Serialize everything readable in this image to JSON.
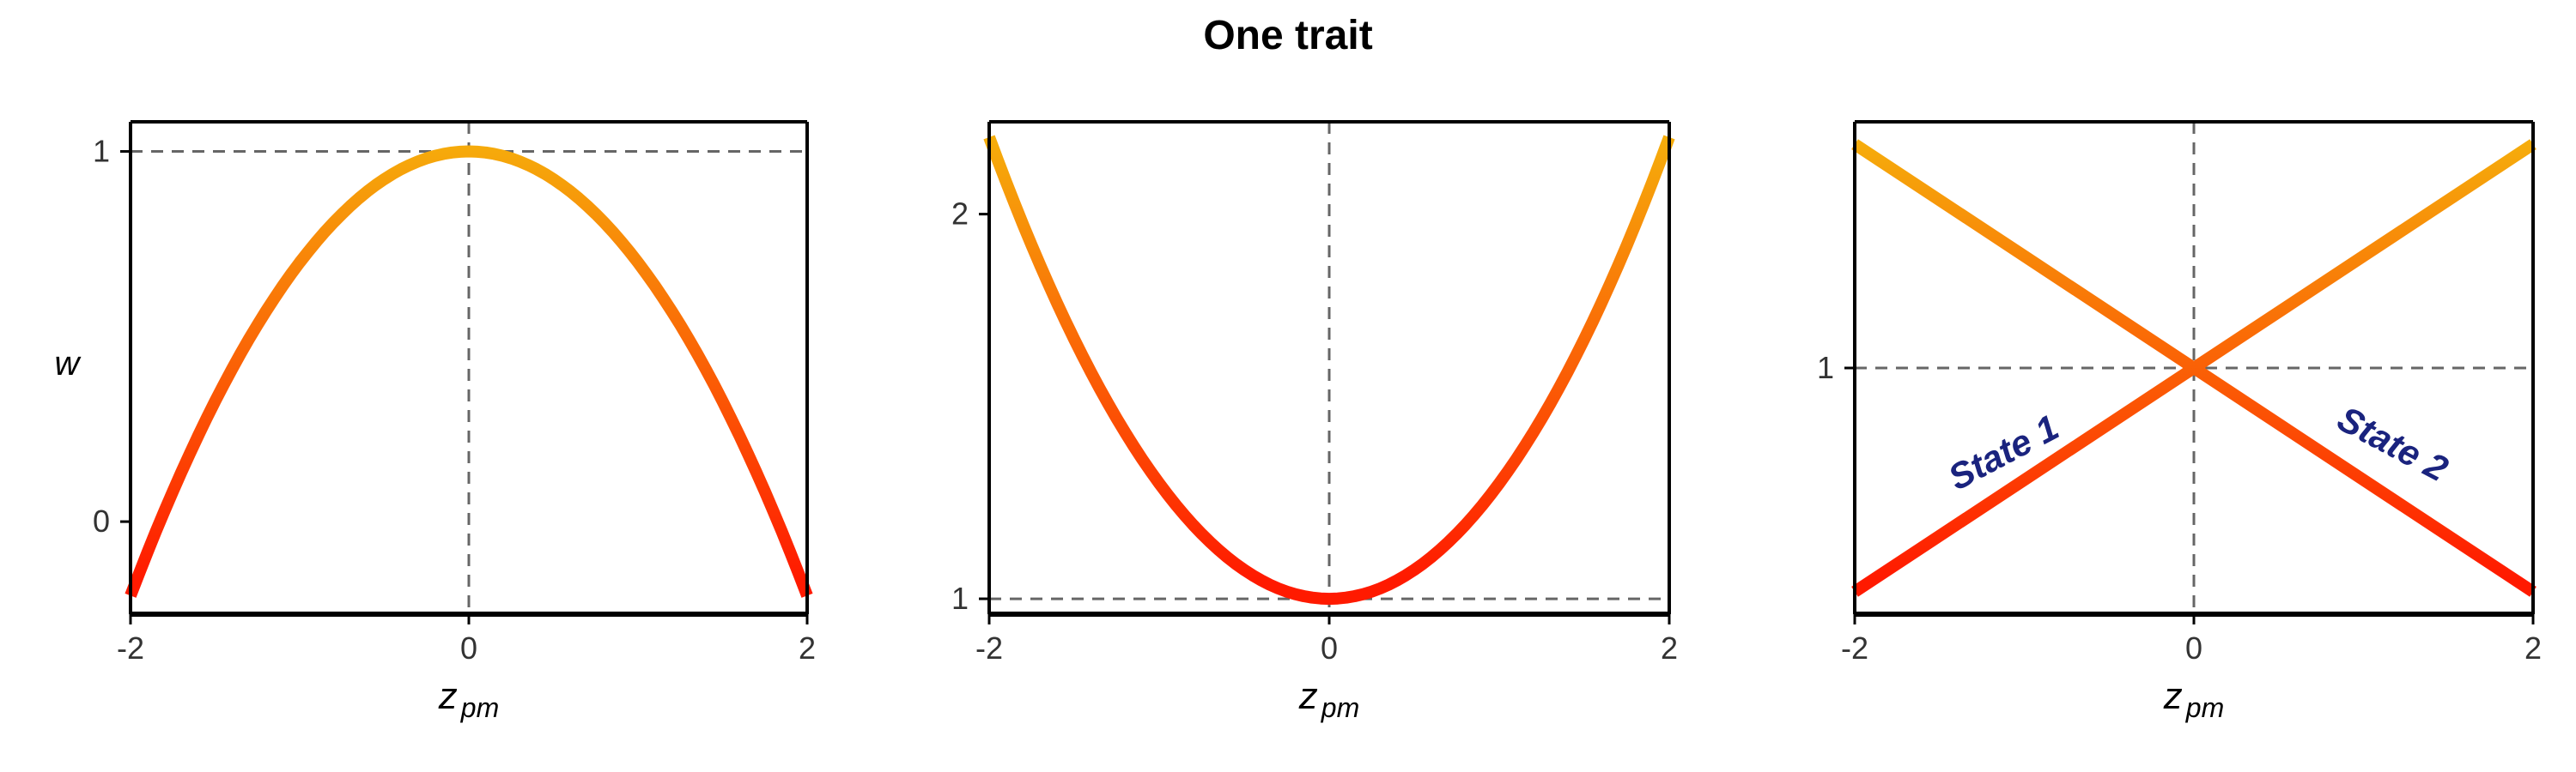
{
  "title": "One trait",
  "colors": {
    "curve_low": "#ff1a00",
    "curve_high": "#f4c20d",
    "annotation": "#1a237e",
    "guide": "#666666"
  },
  "chart_data": [
    {
      "type": "line",
      "function": "quadratic_concave",
      "x": [
        -2,
        -1.5,
        -1,
        -0.5,
        0,
        0.5,
        1,
        1.5,
        2
      ],
      "series": [
        {
          "values": [
            -0.2,
            0.325,
            0.7,
            0.925,
            1,
            0.925,
            0.7,
            0.325,
            -0.2
          ]
        }
      ],
      "xlabel": "z",
      "xlabel_sub": "pm",
      "ylabel": "w",
      "xticks": [
        "-2",
        "0",
        "2"
      ],
      "yticks": [
        "0",
        "1"
      ],
      "xlim": [
        -2,
        2
      ],
      "ylim": [
        -0.25,
        1.08
      ],
      "guides": {
        "vline": 0,
        "hline": 1
      },
      "grid": false
    },
    {
      "type": "line",
      "function": "quadratic_convex",
      "x": [
        -2,
        -1.5,
        -1,
        -0.5,
        0,
        0.5,
        1,
        1.5,
        2
      ],
      "series": [
        {
          "values": [
            2.2,
            1.675,
            1.3,
            1.075,
            1,
            1.075,
            1.3,
            1.675,
            2.2
          ]
        }
      ],
      "xlabel": "z",
      "xlabel_sub": "pm",
      "ylabel": "",
      "xticks": [
        "-2",
        "0",
        "2"
      ],
      "yticks": [
        "1",
        "2"
      ],
      "xlim": [
        -2,
        2
      ],
      "ylim": [
        0.96,
        2.24
      ],
      "guides": {
        "vline": 0,
        "hline": 1
      },
      "grid": false
    },
    {
      "type": "line",
      "function": "linear_crossing",
      "x": [
        -2,
        -1,
        0,
        1,
        2
      ],
      "series": [
        {
          "values": [
            0.4,
            0.7,
            1,
            1.3,
            1.6
          ],
          "label": "State 1"
        },
        {
          "values": [
            1.6,
            1.3,
            1,
            0.7,
            0.4
          ],
          "label": "State 2"
        }
      ],
      "xlabel": "z",
      "xlabel_sub": "pm",
      "ylabel": "",
      "xticks": [
        "-2",
        "0",
        "2"
      ],
      "yticks": [
        "1"
      ],
      "xlim": [
        -2,
        2
      ],
      "ylim": [
        0.34,
        1.66
      ],
      "guides": {
        "vline": 0,
        "hline": 1
      },
      "grid": false
    }
  ]
}
